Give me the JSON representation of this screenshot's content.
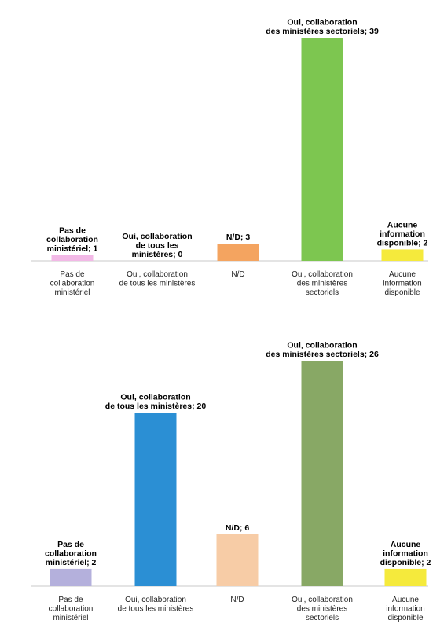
{
  "chart_data": [
    {
      "type": "bar",
      "categories": [
        [
          "Pas de",
          "collaboration",
          "ministériel"
        ],
        [
          "Oui, collaboration",
          "de tous les ministères"
        ],
        [
          "N/D"
        ],
        [
          "Oui, collaboration",
          "des ministères",
          "sectoriels"
        ],
        [
          "Aucune",
          "information",
          "disponible"
        ]
      ],
      "values": [
        1,
        0,
        3,
        39,
        2
      ],
      "data_labels": [
        [
          "Pas de",
          "collaboration",
          "ministériel; 1"
        ],
        [
          "Oui, collaboration",
          "de tous les",
          "ministères; 0"
        ],
        [
          "N/D; 3"
        ],
        [
          "Oui, collaboration",
          "des ministères sectoriels; 39"
        ],
        [
          "Aucune",
          "information",
          "disponible; 2"
        ]
      ],
      "colors": [
        "#f2b8e6",
        "#6fa8dc",
        "#f4a460",
        "#7dc650",
        "#f5ea3c"
      ],
      "ylim": [
        0,
        39
      ],
      "grid": false
    },
    {
      "type": "bar",
      "categories": [
        [
          "Pas de",
          "collaboration",
          "ministériel"
        ],
        [
          "Oui, collaboration",
          "de tous les ministères"
        ],
        [
          "N/D"
        ],
        [
          "Oui, collaboration",
          "des ministères",
          "sectoriels"
        ],
        [
          "Aucune",
          "information",
          "disponible"
        ]
      ],
      "values": [
        2,
        20,
        6,
        26,
        2
      ],
      "data_labels": [
        [
          "Pas de",
          "collaboration",
          "ministériel; 2"
        ],
        [
          "Oui, collaboration",
          "de tous les ministères; 20"
        ],
        [
          "N/D; 6"
        ],
        [
          "Oui, collaboration",
          "des ministères sectoriels; 26"
        ],
        [
          "Aucune",
          "information",
          "disponible; 2"
        ]
      ],
      "colors": [
        "#b4b0dc",
        "#2b8fd4",
        "#f7cca6",
        "#88a865",
        "#f5ea3c"
      ],
      "ylim": [
        0,
        26
      ],
      "grid": false
    }
  ]
}
